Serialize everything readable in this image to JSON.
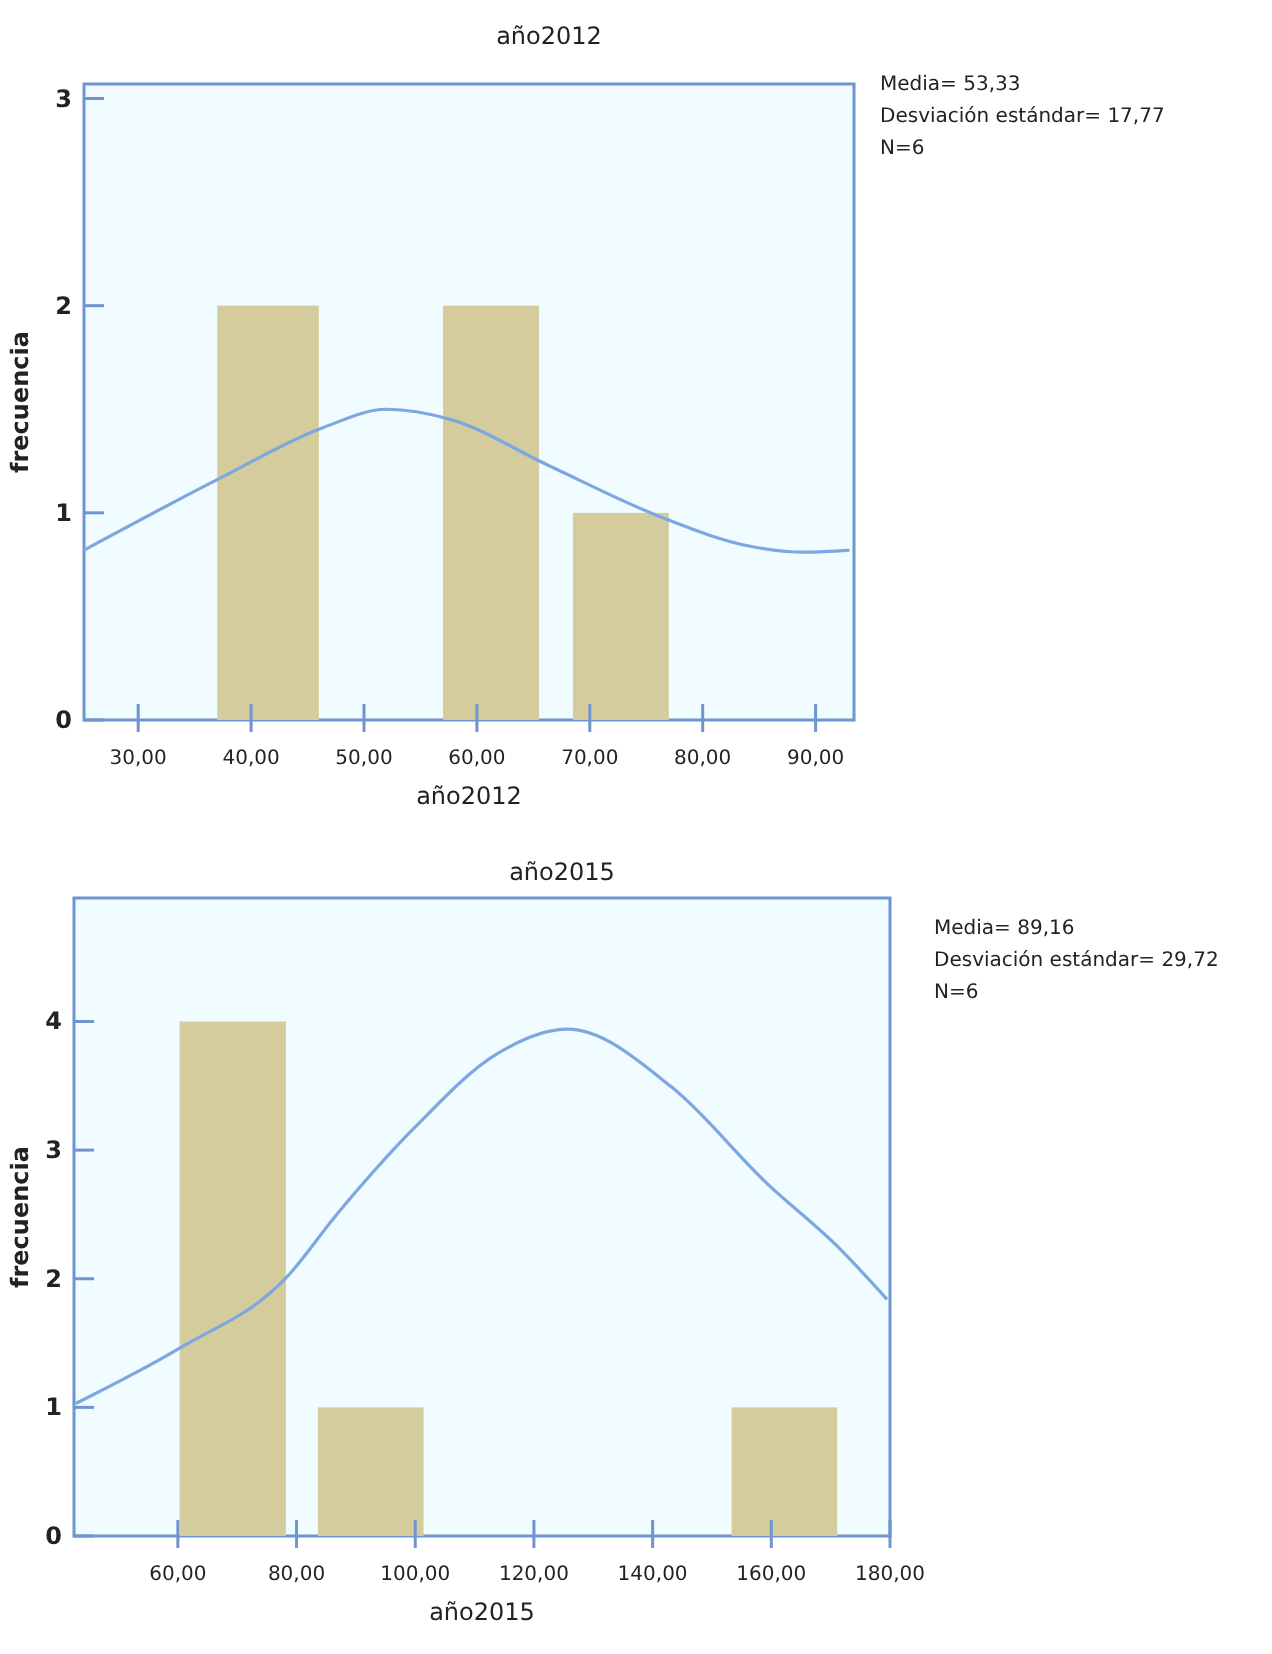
{
  "chart_data": [
    {
      "type": "histogram",
      "title": "año2012",
      "xlabel": "año2012",
      "ylabel": "frecuencia",
      "xlim": [
        25.2,
        93.4
      ],
      "ylim": [
        0,
        3.07
      ],
      "xticks": [
        {
          "value": 30,
          "label": "30,00"
        },
        {
          "value": 40,
          "label": "40,00"
        },
        {
          "value": 50,
          "label": "50,00"
        },
        {
          "value": 60,
          "label": "60,00"
        },
        {
          "value": 70,
          "label": "70,00"
        },
        {
          "value": 80,
          "label": "80,00"
        },
        {
          "value": 90,
          "label": "90,00"
        }
      ],
      "yticks": [
        0,
        1,
        2,
        3
      ],
      "grid": false,
      "series": [
        {
          "type": "histogram",
          "bins": [
            37,
            46,
            57,
            65.5,
            68.5,
            77
          ],
          "values": [
            2,
            0,
            2,
            0,
            1
          ],
          "color": "#d4cc9c"
        },
        {
          "type": "line",
          "x": [
            25.2,
            37,
            46.3,
            52,
            57.7,
            66.3,
            76.3,
            84.1,
            89.1,
            93
          ],
          "values": [
            0.82,
            1.16,
            1.41,
            1.5,
            1.45,
            1.23,
            0.98,
            0.84,
            0.81,
            0.82
          ],
          "color": "#7da7e0"
        }
      ],
      "annotations": [
        "Media= 53,33",
        "Desviación estándar= 17,77",
        "N=6"
      ]
    },
    {
      "type": "histogram",
      "title": "año2015",
      "xlabel": "año2015",
      "ylabel": "frecuencia",
      "xlim": [
        42.5,
        180
      ],
      "ylim": [
        0,
        4.96
      ],
      "xticks": [
        {
          "value": 60,
          "label": "60,00"
        },
        {
          "value": 80,
          "label": "80,00"
        },
        {
          "value": 100,
          "label": "100,00"
        },
        {
          "value": 120,
          "label": "120,00"
        },
        {
          "value": 140,
          "label": "140,00"
        },
        {
          "value": 160,
          "label": "160,00"
        },
        {
          "value": 180,
          "label": "180,00"
        }
      ],
      "yticks": [
        0,
        1,
        2,
        3,
        4
      ],
      "grid": false,
      "series": [
        {
          "type": "histogram",
          "bins": [
            60.3,
            78.2,
            83.6,
            101.4,
            153.3,
            171.1
          ],
          "values": [
            4,
            0,
            1,
            0,
            1
          ],
          "color": "#d4cc9c"
        },
        {
          "type": "line",
          "x": [
            42.8,
            60.3,
            78.5,
            86.6,
            100,
            113.5,
            125.7,
            143.2,
            159.3,
            171.4,
            179.5
          ],
          "values": [
            1.03,
            1.46,
            2.02,
            2.49,
            3.18,
            3.74,
            3.94,
            3.49,
            2.74,
            2.24,
            1.84
          ],
          "color": "#7da7e0"
        }
      ],
      "annotations": [
        "Media= 89,16",
        "Desviación estándar= 29,72",
        "N=6"
      ]
    }
  ]
}
